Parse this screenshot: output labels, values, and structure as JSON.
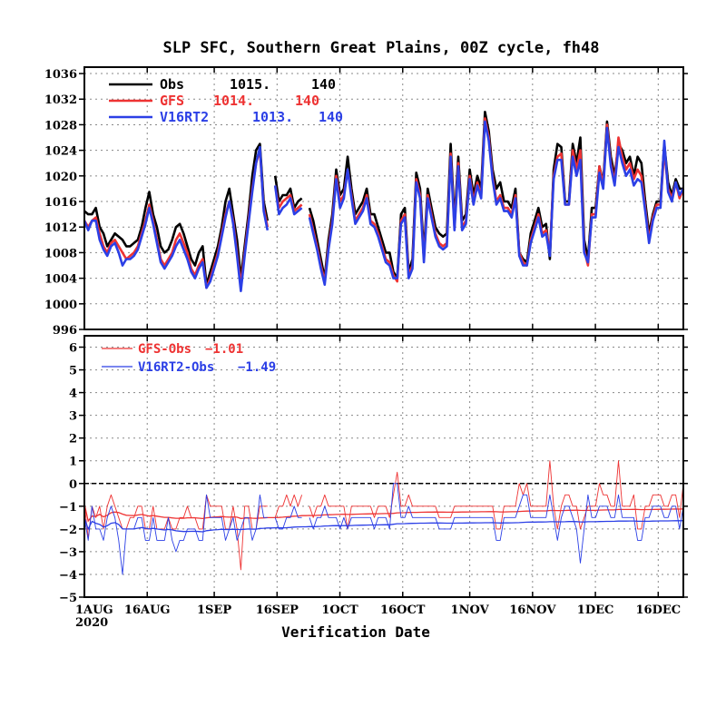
{
  "chart_data": [
    {
      "type": "line",
      "title": "SLP SFC, Southern Great Plains, 00Z cycle, fh48",
      "xlabel": "Verification Date",
      "ylabel": "",
      "ylim": [
        996,
        1037
      ],
      "yticks": [
        996,
        1000,
        1004,
        1008,
        1012,
        1016,
        1020,
        1024,
        1028,
        1032,
        1036
      ],
      "grid": true,
      "legend_position": "top-left",
      "legend": [
        {
          "name": "Obs",
          "mean": "1015.",
          "count": "140",
          "color": "#000000"
        },
        {
          "name": "GFS",
          "mean": "1014.",
          "count": "140",
          "color": "#ee3333"
        },
        {
          "name": "V16RT2",
          "mean": "1013.",
          "count": "140",
          "color": "#2b3fe6"
        }
      ],
      "x_start": "2020-08-01",
      "x_end": "2020-12-22",
      "series": [
        {
          "name": "Obs",
          "color": "#000000",
          "values": [
            1014.5,
            1014,
            1014,
            1015,
            1012,
            1011,
            1009,
            1010,
            1011,
            1010.5,
            1010,
            1009,
            1009,
            1009.5,
            1010,
            1012,
            1015,
            1017.5,
            1014,
            1012,
            1009,
            1008,
            1008.5,
            1010,
            1012,
            1012.5,
            1011,
            1009,
            1007,
            1006,
            1008,
            1009,
            1003,
            1005,
            1007,
            1009,
            1012,
            1016,
            1018,
            1014,
            1010,
            1004,
            1009,
            1014,
            1020,
            1024,
            1025,
            1016,
            1013,
            null,
            1020,
            1016,
            1017,
            1017,
            1018,
            1015,
            1016,
            1016.5,
            null,
            1015,
            1013,
            1010,
            1007,
            1004,
            1010,
            1014,
            1021,
            1017,
            1018,
            1023,
            1018,
            1014,
            1015,
            1016,
            1018,
            1014,
            1014,
            1012,
            1010,
            1008,
            1008,
            1005,
            1004,
            1014,
            1015,
            1005,
            1007,
            1020.5,
            1018,
            1008,
            1018,
            1015,
            1012,
            1011,
            1010.5,
            1011,
            1025,
            1013,
            1023,
            1013,
            1014,
            1021,
            1017,
            1020,
            1018,
            1030,
            1027,
            1021,
            1018,
            1019,
            1016,
            1016,
            1015,
            1018,
            1008,
            1007,
            1006.5,
            1011,
            1013,
            1015,
            1012,
            1012.5,
            1007,
            1021,
            1025,
            1024.5,
            1016,
            1016,
            1025,
            1022,
            1026,
            1010,
            1007,
            1015,
            1015,
            1021.5,
            1019,
            1028.5,
            1023,
            1020,
            1025,
            1024,
            1022,
            1023,
            1020,
            1023,
            1022,
            1016,
            1011,
            1014,
            1016,
            1016,
            1025,
            1019,
            1017,
            1019.5,
            1018,
            1018
          ]
        },
        {
          "name": "GFS",
          "color": "#ee3333",
          "values": [
            1013,
            1012,
            1013,
            1013.5,
            1011,
            1009,
            1008,
            1009.5,
            1010,
            1009,
            1008,
            1007,
            1007.5,
            1008,
            1009,
            1011,
            1013,
            1015.5,
            1013,
            1010,
            1007,
            1006,
            1007,
            1008,
            1010,
            1011,
            1009.5,
            1008,
            1005.5,
            1004.5,
            1006,
            1007,
            1002.5,
            1004,
            1006,
            1008,
            1011,
            1014,
            1016,
            1013,
            1008,
            1003,
            1008,
            1013,
            1018,
            1022,
            1024,
            1015,
            1012,
            null,
            1018.5,
            1015,
            1016,
            1016.5,
            1017,
            1014.5,
            1015,
            1015.5,
            null,
            1014,
            1011.5,
            1009,
            1006,
            1003.5,
            1009,
            1013,
            1020,
            1016,
            1017,
            1021,
            1017,
            1013,
            1014,
            1015,
            1017,
            1013,
            1012.5,
            1011,
            1009,
            1007,
            1006.5,
            1004.5,
            1003.5,
            1013,
            1014,
            1004.5,
            1006,
            1019.5,
            1017,
            1007,
            1017,
            1014,
            1011,
            1009.5,
            1009,
            1009.5,
            1023.5,
            1012,
            1022,
            1012,
            1013,
            1020,
            1016,
            1019,
            1017,
            1029,
            1026,
            1020,
            1016,
            1017,
            1015,
            1015,
            1014,
            1017,
            1008,
            1006.5,
            1006,
            1010,
            1012,
            1014,
            1011,
            1011.5,
            1008,
            1020,
            1023,
            1023.5,
            1015.5,
            1015.5,
            1024,
            1021,
            1024,
            1008.5,
            1006,
            1014,
            1014,
            1021.5,
            1018.5,
            1028,
            1022,
            1019,
            1026,
            1023,
            1021,
            1022,
            1019.5,
            1021,
            1020,
            1015,
            1010,
            1013.5,
            1015.5,
            1015.5,
            1024,
            1018,
            1016.5,
            1019,
            1016.5,
            1018
          ]
        },
        {
          "name": "V16RT2",
          "color": "#2b3fe6",
          "values": [
            1013,
            1011.5,
            1013,
            1013,
            1010,
            1008.5,
            1007.5,
            1009,
            1009.5,
            1008,
            1006,
            1007,
            1007,
            1007.5,
            1008.5,
            1010.5,
            1012.5,
            1015,
            1012.5,
            1009.5,
            1006.5,
            1005.5,
            1006.5,
            1007.5,
            1009,
            1010,
            1008.5,
            1007,
            1005,
            1004,
            1005.5,
            1006.5,
            1002.5,
            1003.5,
            1005.5,
            1007.5,
            1010.5,
            1013.5,
            1016,
            1012.5,
            1007.5,
            1002,
            1007.5,
            1012.5,
            1017.5,
            1022,
            1024.5,
            1014.5,
            1011.5,
            null,
            1018.5,
            1014,
            1015,
            1015.5,
            1016.5,
            1014,
            1014.5,
            1015,
            null,
            1013.5,
            1011,
            1008.5,
            1005.5,
            1003,
            1008.5,
            1012.5,
            1019.5,
            1015,
            1016.5,
            1021,
            1016.5,
            1012.5,
            1013.5,
            1014.5,
            1016.5,
            1012.5,
            1012,
            1010.5,
            1008.5,
            1006.5,
            1006,
            1004,
            1004,
            1012.5,
            1013.5,
            1004,
            1005.5,
            1019,
            1016.5,
            1006.5,
            1016.5,
            1013.5,
            1010.5,
            1009,
            1008.5,
            1009,
            1023,
            1011.5,
            1021.5,
            1011.5,
            1012.5,
            1019.5,
            1015.5,
            1018.5,
            1016.5,
            1028.5,
            1025.5,
            1019.5,
            1015.5,
            1016.5,
            1014.5,
            1014.5,
            1013.5,
            1016.5,
            1007.5,
            1006,
            1006,
            1009.5,
            1011.5,
            1013.5,
            1010.5,
            1011,
            1007.5,
            1019.5,
            1022.5,
            1022.5,
            1015.5,
            1015.5,
            1023,
            1020,
            1022.5,
            1008,
            1006.5,
            1013.5,
            1013.5,
            1020.5,
            1018,
            1027.5,
            1021.5,
            1018.5,
            1024.5,
            1022,
            1020,
            1021,
            1018.5,
            1019.5,
            1019,
            1014.5,
            1009.5,
            1013,
            1015,
            1015,
            1025.5,
            1017.5,
            1016,
            1019,
            1017,
            1018
          ]
        }
      ]
    },
    {
      "type": "line",
      "ylim": [
        -5,
        6.5
      ],
      "yticks": [
        -5,
        -4,
        -3,
        -2,
        -1,
        0,
        1,
        2,
        3,
        4,
        5,
        6
      ],
      "xticks": [
        "1AUG",
        "16AUG",
        "1SEP",
        "16SEP",
        "1OCT",
        "16OCT",
        "1NOV",
        "16NOV",
        "1DEC",
        "16DEC"
      ],
      "xtick_dates": [
        "2020-08-01",
        "2020-08-16",
        "2020-09-01",
        "2020-09-16",
        "2020-10-01",
        "2020-10-16",
        "2020-11-01",
        "2020-11-16",
        "2020-12-01",
        "2020-12-16"
      ],
      "year_label": "2020",
      "zero_line": true,
      "grid": true,
      "legend_position": "top-left",
      "legend": [
        {
          "name": "GFS-Obs",
          "mean": "-1.01",
          "color": "#ee3333"
        },
        {
          "name": "V16RT2-Obs",
          "mean": "-1.49",
          "color": "#2b3fe6"
        }
      ],
      "series": [
        {
          "name": "GFS-Obs",
          "color": "#ee3333",
          "values": [
            -0.9,
            -2.4,
            -1,
            -1.5,
            -1,
            -2,
            -1,
            -0.5,
            -1,
            -1.5,
            -2,
            -2,
            -1.5,
            -1.5,
            -1,
            -1,
            -2,
            -2,
            -1,
            -2,
            -2,
            -2,
            -1.5,
            -2,
            -2,
            -1.5,
            -1.5,
            -1,
            -1.5,
            -1.5,
            -2,
            -2,
            -0.5,
            -1,
            -1,
            -1,
            -1,
            -2,
            -2,
            -1,
            -2,
            -3.8,
            -1,
            -1,
            -2,
            -2,
            -1,
            -1,
            -1,
            null,
            -1.5,
            -1,
            -1,
            -0.5,
            -1,
            -0.5,
            -1,
            -0.5,
            null,
            -1,
            -1.5,
            -1,
            -1,
            -0.5,
            -1,
            -1,
            -1,
            -1,
            -1,
            -2,
            -1,
            -1,
            -1,
            -1,
            -1,
            -1,
            -1.5,
            -1,
            -1,
            -1,
            -1.5,
            -0.5,
            0.5,
            -1,
            -1,
            -0.5,
            -1,
            -1,
            -1,
            -1,
            -1,
            -1,
            -1,
            -1.5,
            -1.5,
            -1.5,
            -1.5,
            -1,
            -1,
            -1,
            -1,
            -1,
            -1,
            -1,
            -1,
            -1,
            -1,
            -1,
            -2,
            -2,
            -1,
            -1,
            -1,
            -1,
            0,
            -0.5,
            0,
            -1,
            -1,
            -1,
            -1,
            -1,
            1,
            -1,
            -2,
            -1,
            -0.5,
            -0.5,
            -1,
            -1,
            -2,
            -1.5,
            -1,
            -1,
            -1,
            0,
            -0.5,
            -0.5,
            -1,
            -1,
            1,
            -1,
            -1,
            -1,
            -0.5,
            -2,
            -2,
            -1,
            -1,
            -0.5,
            -0.5,
            -0.5,
            -1,
            -1,
            -0.5,
            -0.5,
            -1.5,
            0
          ]
        },
        {
          "name": "V16RT2-Obs",
          "color": "#2b3fe6",
          "values": [
            -1.5,
            -2.5,
            -1,
            -2,
            -2,
            -2.5,
            -1.5,
            -1,
            -1.5,
            -2.5,
            -4,
            -2,
            -2,
            -2,
            -1.5,
            -1.5,
            -2.5,
            -2.5,
            -1.5,
            -2.5,
            -2.5,
            -2.5,
            -1.5,
            -2.5,
            -3,
            -2.5,
            -2.5,
            -2,
            -2,
            -2,
            -2.5,
            -2.5,
            -0.5,
            -1.5,
            -1.5,
            -1.5,
            -1.5,
            -2.5,
            -2,
            -1.5,
            -2.5,
            -2,
            -1.5,
            -1.5,
            -2.5,
            -2,
            -0.5,
            -1.5,
            -1.5,
            null,
            -1.5,
            -2,
            -2,
            -1.5,
            -1.5,
            -1,
            -1.5,
            -1.5,
            null,
            -1.5,
            -2,
            -1.5,
            -1.5,
            -1,
            -1.5,
            -1.5,
            -1.5,
            -2,
            -1.5,
            -2,
            -1.5,
            -1.5,
            -1.5,
            -1.5,
            -1.5,
            -1.5,
            -2,
            -1.5,
            -1.5,
            -1.5,
            -2,
            0,
            0,
            -1.5,
            -1.5,
            -1,
            -1.5,
            -1.5,
            -1.5,
            -1.5,
            -1.5,
            -1.5,
            -1.5,
            -2,
            -2,
            -2,
            -2,
            -1.5,
            -1.5,
            -1.5,
            -1.5,
            -1.5,
            -1.5,
            -1.5,
            -1.5,
            -1.5,
            -1.5,
            -1.5,
            -2.5,
            -2.5,
            -1.5,
            -1.5,
            -1.5,
            -1.5,
            -1,
            -0.5,
            -0.5,
            -1.5,
            -1.5,
            -1.5,
            -1.5,
            -1.5,
            -0.5,
            -1.5,
            -2.5,
            -1.5,
            -1,
            -1,
            -1.5,
            -2,
            -3.5,
            -2,
            -0.5,
            -1.5,
            -1.5,
            -1,
            -1,
            -1,
            -1.5,
            -1.5,
            -0.5,
            -1.5,
            -1.5,
            -1.5,
            -1.5,
            -2.5,
            -2.5,
            -1.5,
            -1.5,
            -1,
            -1,
            -1,
            -1.5,
            -1.5,
            -1,
            -1,
            -2,
            -1
          ]
        }
      ]
    }
  ]
}
